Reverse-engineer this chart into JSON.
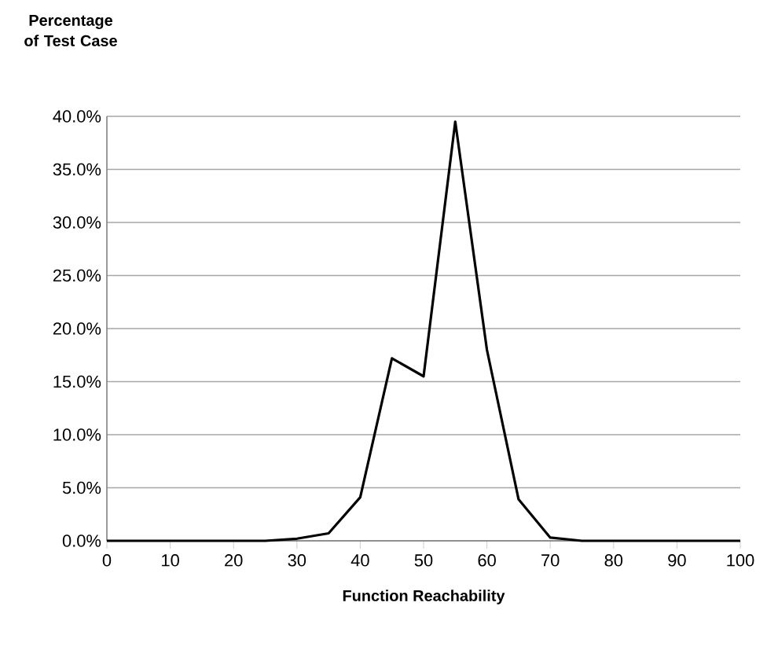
{
  "chart_data": {
    "type": "line",
    "ylabel": "Percentage of Test Case",
    "xlabel": "Function Reachability",
    "x": [
      0,
      5,
      10,
      15,
      20,
      25,
      30,
      35,
      40,
      45,
      50,
      55,
      60,
      65,
      70,
      75,
      80,
      85,
      90,
      95,
      100
    ],
    "series": [
      {
        "color": "#000000",
        "values": [
          0,
          0,
          0,
          0,
          0,
          0,
          0.2,
          0.7,
          4.1,
          17.2,
          15.5,
          39.5,
          18,
          3.9,
          0.3,
          0,
          0,
          0,
          0,
          0,
          0
        ]
      }
    ],
    "xlim": [
      0,
      100
    ],
    "xticks": [
      0,
      10,
      20,
      30,
      40,
      50,
      60,
      70,
      80,
      90,
      100
    ],
    "ylim": [
      0,
      40
    ],
    "yticks": [
      {
        "value": 0,
        "label": "0.0%"
      },
      {
        "value": 5,
        "label": "5.0%"
      },
      {
        "value": 10,
        "label": "10.0%"
      },
      {
        "value": 15,
        "label": "15.0%"
      },
      {
        "value": 20,
        "label": "20.0%"
      },
      {
        "value": 25,
        "label": "25.0%"
      },
      {
        "value": 30,
        "label": "30.0%"
      },
      {
        "value": 35,
        "label": "35.0%"
      },
      {
        "value": 40,
        "label": "40.0%"
      }
    ],
    "grid": "y",
    "marker": "none",
    "line_style": "solid"
  }
}
